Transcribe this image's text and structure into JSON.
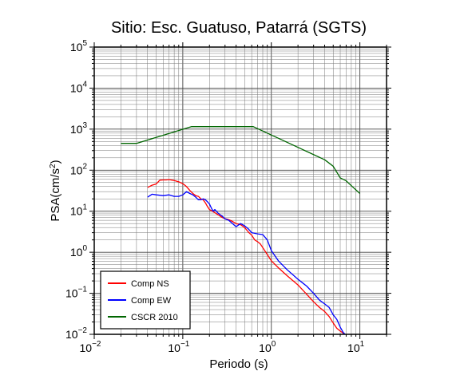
{
  "chart_data": {
    "type": "line",
    "title": "Sitio: Esc. Guatuso, Patarrá (SGTS)",
    "xlabel": "Periodo (s)",
    "ylabel": {
      "prefix": "PSA(cm/s",
      "sup": "2",
      "suffix": ")"
    },
    "xscale": "log",
    "yscale": "log",
    "xlim": [
      0.01,
      20
    ],
    "ylim": [
      0.01,
      100000
    ],
    "grid": true,
    "legend_position": "bottom-left",
    "x_ticks": [
      {
        "base": "10",
        "exp": "−2",
        "value": 0.01
      },
      {
        "base": "10",
        "exp": "−1",
        "value": 0.1
      },
      {
        "base": "10",
        "exp": "0",
        "value": 1
      },
      {
        "base": "10",
        "exp": "1",
        "value": 10
      }
    ],
    "y_ticks": [
      {
        "base": "10",
        "exp": "−2",
        "value": 0.01
      },
      {
        "base": "10",
        "exp": "−1",
        "value": 0.1
      },
      {
        "base": "10",
        "exp": "0",
        "value": 1
      },
      {
        "base": "10",
        "exp": "1",
        "value": 10
      },
      {
        "base": "10",
        "exp": "2",
        "value": 100
      },
      {
        "base": "10",
        "exp": "3",
        "value": 1000
      },
      {
        "base": "10",
        "exp": "4",
        "value": 10000
      },
      {
        "base": "10",
        "exp": "5",
        "value": 100000
      }
    ],
    "series": [
      {
        "name": "Comp NS",
        "color": "#ff0000",
        "points": [
          [
            0.04,
            38
          ],
          [
            0.045,
            43
          ],
          [
            0.05,
            46
          ],
          [
            0.055,
            57
          ],
          [
            0.06,
            58
          ],
          [
            0.065,
            58
          ],
          [
            0.07,
            59
          ],
          [
            0.08,
            56
          ],
          [
            0.09,
            52
          ],
          [
            0.1,
            47
          ],
          [
            0.11,
            40
          ],
          [
            0.12,
            32
          ],
          [
            0.13,
            27
          ],
          [
            0.14,
            24
          ],
          [
            0.15,
            23
          ],
          [
            0.16,
            20
          ],
          [
            0.17,
            19
          ],
          [
            0.18,
            16
          ],
          [
            0.19,
            13
          ],
          [
            0.2,
            11
          ],
          [
            0.22,
            9.8
          ],
          [
            0.25,
            8.2
          ],
          [
            0.28,
            7
          ],
          [
            0.3,
            6.6
          ],
          [
            0.33,
            6.2
          ],
          [
            0.35,
            5.9
          ],
          [
            0.4,
            5.0
          ],
          [
            0.45,
            4.7
          ],
          [
            0.5,
            4.0
          ],
          [
            0.55,
            3.1
          ],
          [
            0.6,
            2.6
          ],
          [
            0.65,
            2.0
          ],
          [
            0.7,
            1.8
          ],
          [
            0.75,
            1.6
          ],
          [
            0.8,
            1.3
          ],
          [
            0.9,
            0.88
          ],
          [
            1.0,
            0.62
          ],
          [
            1.2,
            0.42
          ],
          [
            1.5,
            0.27
          ],
          [
            2.0,
            0.16
          ],
          [
            2.5,
            0.095
          ],
          [
            3.0,
            0.062
          ],
          [
            3.5,
            0.045
          ],
          [
            4.0,
            0.036
          ],
          [
            4.5,
            0.027
          ],
          [
            5.0,
            0.019
          ],
          [
            5.5,
            0.014
          ],
          [
            6.0,
            0.012
          ],
          [
            7.0,
            0.0095
          ],
          [
            8.0,
            0.0085
          ]
        ]
      },
      {
        "name": "Comp EW",
        "color": "#0000ff",
        "points": [
          [
            0.04,
            22
          ],
          [
            0.045,
            26
          ],
          [
            0.05,
            25
          ],
          [
            0.06,
            24
          ],
          [
            0.07,
            25
          ],
          [
            0.08,
            23
          ],
          [
            0.09,
            23
          ],
          [
            0.1,
            25
          ],
          [
            0.11,
            30
          ],
          [
            0.12,
            27
          ],
          [
            0.13,
            25
          ],
          [
            0.14,
            22
          ],
          [
            0.15,
            19
          ],
          [
            0.16,
            19
          ],
          [
            0.17,
            20
          ],
          [
            0.18,
            19
          ],
          [
            0.19,
            17
          ],
          [
            0.2,
            15
          ],
          [
            0.21,
            12
          ],
          [
            0.22,
            10
          ],
          [
            0.23,
            11
          ],
          [
            0.25,
            9
          ],
          [
            0.28,
            7.5
          ],
          [
            0.3,
            6.5
          ],
          [
            0.33,
            6.0
          ],
          [
            0.35,
            5.4
          ],
          [
            0.4,
            4.2
          ],
          [
            0.45,
            5.0
          ],
          [
            0.5,
            4.4
          ],
          [
            0.55,
            3.7
          ],
          [
            0.6,
            3.0
          ],
          [
            0.7,
            2.8
          ],
          [
            0.8,
            2.7
          ],
          [
            0.9,
            2.0
          ],
          [
            1.0,
            1.1
          ],
          [
            1.2,
            0.62
          ],
          [
            1.5,
            0.38
          ],
          [
            2.0,
            0.22
          ],
          [
            2.5,
            0.15
          ],
          [
            3.0,
            0.1
          ],
          [
            3.5,
            0.068
          ],
          [
            4.0,
            0.055
          ],
          [
            4.5,
            0.045
          ],
          [
            5.0,
            0.03
          ],
          [
            5.5,
            0.023
          ],
          [
            6.0,
            0.015
          ],
          [
            6.5,
            0.011
          ],
          [
            7.0,
            0.0095
          ],
          [
            8.0,
            0.009
          ]
        ]
      },
      {
        "name": "CSCR 2010",
        "color": "#006600",
        "points": [
          [
            0.02,
            450
          ],
          [
            0.03,
            450
          ],
          [
            0.125,
            1150
          ],
          [
            0.625,
            1150
          ],
          [
            4.0,
            180
          ],
          [
            5.0,
            125
          ],
          [
            6.0,
            65
          ],
          [
            7.0,
            55
          ],
          [
            8.0,
            42
          ],
          [
            10.0,
            27
          ]
        ]
      }
    ]
  }
}
